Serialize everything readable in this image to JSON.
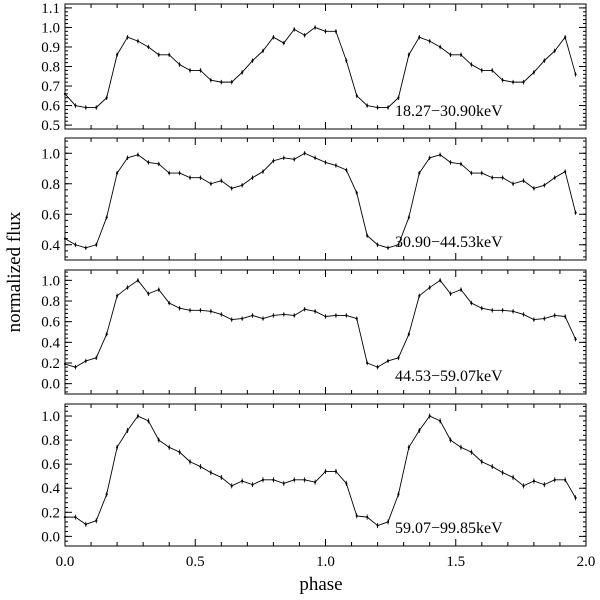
{
  "chart_data": {
    "type": "line",
    "xlabel": "phase",
    "ylabel": "normalized flux",
    "xlim": [
      0.0,
      2.0
    ],
    "x_ticks": [
      "0.0",
      "0.5",
      "1.0",
      "1.5",
      "2.0"
    ],
    "x_tick_values": [
      0.0,
      0.5,
      1.0,
      1.5,
      2.0
    ],
    "x": [
      0.0,
      0.04,
      0.08,
      0.12,
      0.16,
      0.2,
      0.24,
      0.28,
      0.32,
      0.36,
      0.4,
      0.44,
      0.48,
      0.52,
      0.56,
      0.6,
      0.64,
      0.68,
      0.72,
      0.76,
      0.8,
      0.84,
      0.88,
      0.92,
      0.96,
      1.0,
      1.04,
      1.08,
      1.12,
      1.16,
      1.2,
      1.24,
      1.28,
      1.32,
      1.36,
      1.4,
      1.44,
      1.48,
      1.52,
      1.56,
      1.6,
      1.64,
      1.68,
      1.72,
      1.76,
      1.8,
      1.84,
      1.88,
      1.92,
      1.96
    ],
    "panels": [
      {
        "label": "18.27−30.90keV",
        "ylim": [
          0.48,
          1.12
        ],
        "y_ticks": [
          "0.5",
          "0.6",
          "0.7",
          "0.8",
          "0.9",
          "1.0",
          "1.1"
        ],
        "y_tick_values": [
          0.5,
          0.6,
          0.7,
          0.8,
          0.9,
          1.0,
          1.1
        ],
        "values": [
          0.66,
          0.6,
          0.59,
          0.59,
          0.64,
          0.86,
          0.95,
          0.93,
          0.9,
          0.86,
          0.86,
          0.81,
          0.78,
          0.78,
          0.73,
          0.72,
          0.72,
          0.77,
          0.83,
          0.88,
          0.95,
          0.92,
          0.99,
          0.96,
          1.0,
          0.98,
          0.98,
          0.83,
          0.65,
          0.6,
          0.59,
          0.59,
          0.64,
          0.86,
          0.95,
          0.93,
          0.9,
          0.86,
          0.86,
          0.81,
          0.78,
          0.78,
          0.73,
          0.72,
          0.72,
          0.77,
          0.83,
          0.88,
          0.95,
          0.76
        ]
      },
      {
        "label": "30.90−44.53keV",
        "ylim": [
          0.3,
          1.1
        ],
        "y_ticks": [
          "0.4",
          "0.6",
          "0.8",
          "1.0"
        ],
        "y_tick_values": [
          0.4,
          0.6,
          0.8,
          1.0
        ],
        "values": [
          0.44,
          0.4,
          0.38,
          0.4,
          0.58,
          0.87,
          0.97,
          0.99,
          0.94,
          0.93,
          0.87,
          0.87,
          0.84,
          0.84,
          0.8,
          0.82,
          0.77,
          0.79,
          0.84,
          0.88,
          0.95,
          0.97,
          0.96,
          1.0,
          0.97,
          0.94,
          0.92,
          0.89,
          0.74,
          0.46,
          0.4,
          0.38,
          0.4,
          0.58,
          0.87,
          0.97,
          0.99,
          0.94,
          0.93,
          0.87,
          0.87,
          0.84,
          0.84,
          0.8,
          0.82,
          0.77,
          0.79,
          0.84,
          0.88,
          0.61
        ]
      },
      {
        "label": "44.53−59.07keV",
        "ylim": [
          -0.1,
          1.1
        ],
        "y_ticks": [
          "0.0",
          "0.2",
          "0.4",
          "0.6",
          "0.8",
          "1.0"
        ],
        "y_tick_values": [
          0.0,
          0.2,
          0.4,
          0.6,
          0.8,
          1.0
        ],
        "values": [
          0.19,
          0.16,
          0.22,
          0.25,
          0.48,
          0.85,
          0.93,
          1.0,
          0.87,
          0.91,
          0.78,
          0.73,
          0.71,
          0.71,
          0.7,
          0.67,
          0.62,
          0.63,
          0.66,
          0.63,
          0.66,
          0.67,
          0.66,
          0.72,
          0.7,
          0.65,
          0.66,
          0.66,
          0.63,
          0.2,
          0.16,
          0.22,
          0.25,
          0.48,
          0.85,
          0.93,
          1.0,
          0.87,
          0.91,
          0.78,
          0.73,
          0.71,
          0.71,
          0.7,
          0.67,
          0.62,
          0.63,
          0.66,
          0.65,
          0.43
        ]
      },
      {
        "label": "59.07−99.85keV",
        "ylim": [
          -0.08,
          1.1
        ],
        "y_ticks": [
          "0.0",
          "0.2",
          "0.4",
          "0.6",
          "0.8",
          "1.0"
        ],
        "y_tick_values": [
          0.0,
          0.2,
          0.4,
          0.6,
          0.8,
          1.0
        ],
        "values": [
          0.16,
          0.16,
          0.1,
          0.13,
          0.35,
          0.74,
          0.88,
          1.0,
          0.96,
          0.8,
          0.74,
          0.7,
          0.62,
          0.58,
          0.53,
          0.49,
          0.42,
          0.46,
          0.43,
          0.47,
          0.47,
          0.44,
          0.47,
          0.47,
          0.45,
          0.54,
          0.54,
          0.44,
          0.17,
          0.16,
          0.09,
          0.12,
          0.35,
          0.74,
          0.88,
          1.0,
          0.96,
          0.8,
          0.74,
          0.7,
          0.62,
          0.58,
          0.53,
          0.49,
          0.42,
          0.46,
          0.43,
          0.47,
          0.47,
          0.32
        ]
      }
    ]
  }
}
